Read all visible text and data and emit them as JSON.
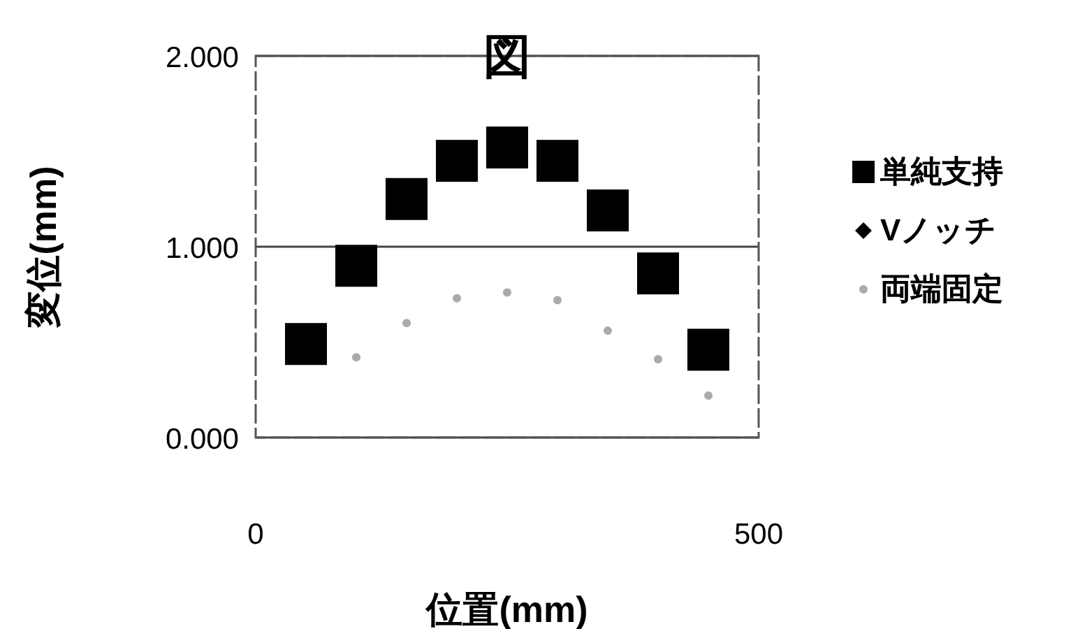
{
  "chart_data": {
    "type": "scatter",
    "title": "図",
    "xlabel": "位置(mm)",
    "ylabel": "変位(mm)",
    "x": [
      50,
      100,
      150,
      200,
      250,
      300,
      350,
      400,
      450
    ],
    "xlim": [
      0,
      500
    ],
    "xticks": [
      0,
      500
    ],
    "ylim": [
      0,
      2
    ],
    "yticks": [
      {
        "value": 0,
        "label": "0.000"
      },
      {
        "value": 1,
        "label": "1.000"
      },
      {
        "value": 2,
        "label": "2.000"
      }
    ],
    "grid": "y",
    "legend": "right",
    "series": [
      {
        "name": "単純支持",
        "color": "#000000",
        "marker": "square",
        "values": [
          0.49,
          0.9,
          1.25,
          1.45,
          1.52,
          1.45,
          1.19,
          0.86,
          0.46
        ]
      },
      {
        "name": "Vノッチ",
        "color": "#000000",
        "marker": "diamond",
        "values": [
          null,
          null,
          null,
          null,
          null,
          null,
          null,
          null,
          null
        ]
      },
      {
        "name": "両端固定",
        "color": "#aaaaaa",
        "marker": "circle",
        "values": [
          null,
          0.42,
          0.6,
          0.73,
          0.76,
          0.72,
          0.56,
          0.41,
          0.22
        ]
      }
    ]
  }
}
